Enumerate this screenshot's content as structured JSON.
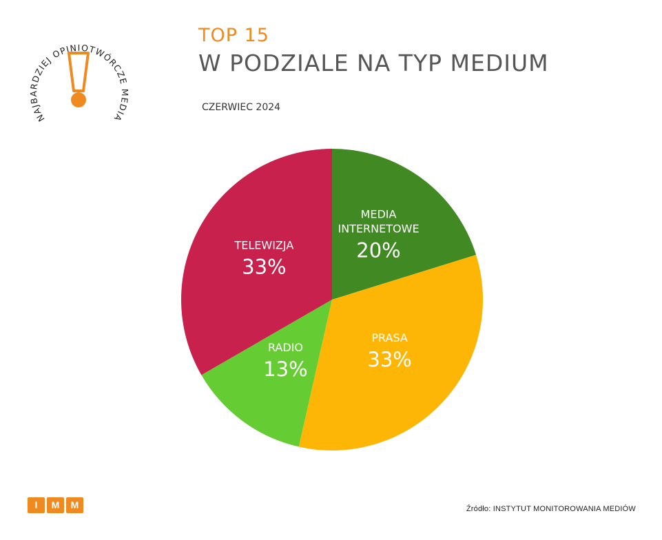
{
  "badge": {
    "text": "NAJBARDZIEJ OPINIOTWÓRCZE MEDIA",
    "accent": "#ee8a1f"
  },
  "header": {
    "title": "TOP 15",
    "heading": "W PODZIALE NA TYP MEDIUM",
    "subtitle": "CZERWIEC 2024"
  },
  "chart_data": {
    "type": "pie",
    "title": "W PODZIALE NA TYP MEDIUM",
    "slices": [
      {
        "label": "MEDIA INTERNETOWE",
        "label_lines": [
          "MEDIA",
          "INTERNETOWE"
        ],
        "value": 20,
        "display": "20%",
        "color": "#418a23"
      },
      {
        "label": "PRASA",
        "label_lines": [
          "PRASA"
        ],
        "value": 33,
        "display": "33%",
        "color": "#fdb606"
      },
      {
        "label": "RADIO",
        "label_lines": [
          "RADIO"
        ],
        "value": 13,
        "display": "13%",
        "color": "#66cc33"
      },
      {
        "label": "TELEWIZJA",
        "label_lines": [
          "TELEWIZJA"
        ],
        "value": 33,
        "display": "33%",
        "color": "#c8214e"
      }
    ]
  },
  "footer": {
    "logo_letters": [
      "I",
      "M",
      "M"
    ],
    "source": "Źródło: INSTYTUT MONITOROWANIA MEDIÓW"
  }
}
